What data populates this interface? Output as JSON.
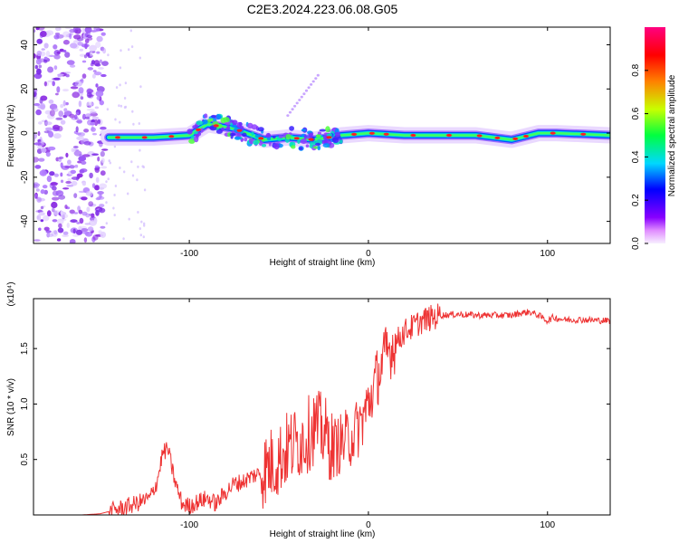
{
  "title": "C2E3.2024.223.06.08.G05",
  "chart_data": [
    {
      "type": "heatmap",
      "name": "spectrogram",
      "xlabel": "Height of straight line (km)",
      "ylabel": "Frequency (Hz)",
      "xlim": [
        -187,
        135
      ],
      "ylim": [
        -50,
        48
      ],
      "x_ticks": [
        -100,
        0,
        100
      ],
      "x_tick_labels": [
        "-100",
        "0",
        "100"
      ],
      "y_ticks": [
        -40,
        -20,
        0,
        20,
        40
      ],
      "y_tick_labels": [
        "-40",
        "-20",
        "0",
        "20",
        "40"
      ],
      "colorbar": {
        "label": "Normalized spectral amplitude",
        "range": [
          0,
          1
        ],
        "ticks": [
          0.0,
          0.2,
          0.4,
          0.6,
          0.8
        ],
        "tick_labels": [
          "0.0",
          "0.2",
          "0.4",
          "0.6",
          "0.8"
        ],
        "colors": [
          "#f7f0ff",
          "#e08cff",
          "#8800ff",
          "#0000ff",
          "#00d8ff",
          "#00ff40",
          "#c8ff00",
          "#ff8000",
          "#ff0000",
          "#ff0080"
        ]
      },
      "signal_band": [
        {
          "x": -145,
          "freq": -2
        },
        {
          "x": -120,
          "freq": -2
        },
        {
          "x": -100,
          "freq": -1
        },
        {
          "x": -90,
          "freq": 4
        },
        {
          "x": -75,
          "freq": 2
        },
        {
          "x": -58,
          "freq": -3
        },
        {
          "x": -45,
          "freq": -2
        },
        {
          "x": -30,
          "freq": -3
        },
        {
          "x": -15,
          "freq": -1
        },
        {
          "x": 0,
          "freq": 0
        },
        {
          "x": 20,
          "freq": -1
        },
        {
          "x": 60,
          "freq": -1
        },
        {
          "x": 80,
          "freq": -3
        },
        {
          "x": 95,
          "freq": 0
        },
        {
          "x": 105,
          "freq": 0
        },
        {
          "x": 135,
          "freq": -1
        }
      ],
      "noise_region": {
        "x_from": -187,
        "x_to": -145
      }
    },
    {
      "type": "line",
      "name": "snr",
      "xlabel": "Height of straight line (km)",
      "ylabel": "SNR (10 * v/v)",
      "y_scale_note": "(x10⁴)",
      "xlim": [
        -187,
        135
      ],
      "ylim": [
        0,
        1.95
      ],
      "x_ticks": [
        -100,
        0,
        100
      ],
      "x_tick_labels": [
        "-100",
        "0",
        "100"
      ],
      "y_ticks": [
        0.5,
        1.0,
        1.5
      ],
      "y_tick_labels": [
        "0.5",
        "1.0",
        "1.5"
      ],
      "color": "#ee3333",
      "series": [
        {
          "name": "SNR",
          "x": [
            -187,
            -160,
            -150,
            -140,
            -130,
            -122,
            -118,
            -115,
            -112,
            -108,
            -104,
            -100,
            -95,
            -90,
            -85,
            -80,
            -75,
            -70,
            -65,
            -60,
            -55,
            -50,
            -45,
            -40,
            -35,
            -30,
            -25,
            -20,
            -15,
            -10,
            -5,
            0,
            5,
            10,
            15,
            20,
            30,
            40,
            50,
            60,
            70,
            80,
            85,
            90,
            95,
            100,
            103,
            110,
            120,
            135
          ],
          "y": [
            0.0,
            0.0,
            0.01,
            0.05,
            0.1,
            0.15,
            0.3,
            0.55,
            0.6,
            0.3,
            0.1,
            0.08,
            0.12,
            0.15,
            0.1,
            0.2,
            0.28,
            0.3,
            0.35,
            0.38,
            0.45,
            0.5,
            0.6,
            0.65,
            0.7,
            0.8,
            0.75,
            0.6,
            0.65,
            0.7,
            0.8,
            1.0,
            1.25,
            1.45,
            1.55,
            1.65,
            1.75,
            1.8,
            1.81,
            1.8,
            1.8,
            1.8,
            1.82,
            1.83,
            1.8,
            1.75,
            1.78,
            1.76,
            1.76,
            1.75
          ]
        }
      ]
    }
  ]
}
